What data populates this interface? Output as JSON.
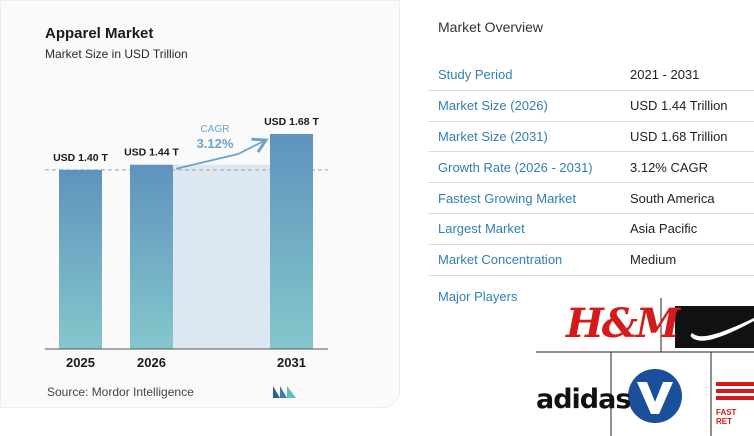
{
  "chart": {
    "title": "Apparel Market",
    "subtitle": "Market Size in USD Trillion",
    "source": "Source: Mordor Intelligence",
    "cagr_label": "CAGR",
    "cagr_value": "3.12%",
    "colors": {
      "bar_top": "#5f93bd",
      "bar_bottom": "#84c7cc",
      "band": "#dde7f1",
      "accent": "#6ba3cb"
    }
  },
  "chart_data": {
    "type": "bar",
    "categories": [
      "2025",
      "2026",
      "2031"
    ],
    "values": [
      1.4,
      1.44,
      1.68
    ],
    "data_labels": [
      "USD 1.40 T",
      "USD 1.44 T",
      "USD 1.68 T"
    ],
    "title": "Apparel Market",
    "subtitle": "Market Size in USD Trillion",
    "xlabel": "",
    "ylabel": "",
    "grid": false,
    "annotations": [
      "CAGR",
      "3.12%"
    ]
  },
  "overview": {
    "title": "Market Overview",
    "rows": [
      {
        "label": "Study Period",
        "value": "2021 - 2031"
      },
      {
        "label": "Market Size (2026)",
        "value": "USD 1.44 Trillion"
      },
      {
        "label": "Market Size (2031)",
        "value": "USD 1.68 Trillion"
      },
      {
        "label": "Growth Rate (2026 - 2031)",
        "value": "3.12% CAGR"
      },
      {
        "label": "Fastest Growing Market",
        "value": "South America"
      },
      {
        "label": "Largest Market",
        "value": "Asia Pacific"
      },
      {
        "label": "Market Concentration",
        "value": "Medium"
      }
    ],
    "major_players_label": "Major Players",
    "logos": {
      "hm": "H&M",
      "adidas": "adidas",
      "fast_retailing": "FAST RET",
      "icons": [
        "hm-logo",
        "nike-swoosh-logo",
        "adidas-logo",
        "vf-logo",
        "fast-retailing-logo"
      ]
    }
  }
}
